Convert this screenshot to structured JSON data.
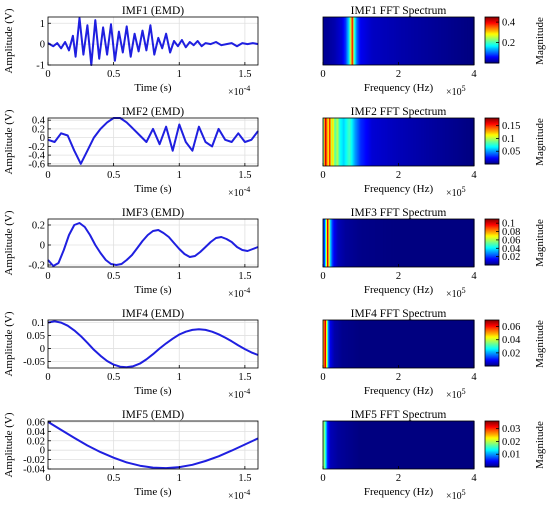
{
  "chart_data": [
    {
      "type": "line",
      "title": "IMF1 (EMD)",
      "xlabel": "Time (s)",
      "ylabel": "Amplitude (V)",
      "x_multiplier": "×10",
      "x_exponent": "-4",
      "xlim": [
        0,
        1.6
      ],
      "ylim": [
        -1,
        1.3
      ],
      "xticks": [
        "0",
        "0.5",
        "1",
        "1.5"
      ],
      "yticks": [
        -1,
        0,
        1
      ],
      "grid": true,
      "color": "#1f1fe0",
      "series": [
        {
          "x": [
            0,
            0.04,
            0.07,
            0.1,
            0.13,
            0.16,
            0.19,
            0.21,
            0.24,
            0.27,
            0.3,
            0.33,
            0.36,
            0.39,
            0.42,
            0.45,
            0.48,
            0.51,
            0.54,
            0.57,
            0.6,
            0.63,
            0.66,
            0.69,
            0.72,
            0.75,
            0.78,
            0.81,
            0.84,
            0.87,
            0.9,
            0.93,
            0.96,
            0.99,
            1.02,
            1.05,
            1.08,
            1.11,
            1.14,
            1.17,
            1.2,
            1.24,
            1.28,
            1.32,
            1.36,
            1.4,
            1.44,
            1.48,
            1.52,
            1.56,
            1.6
          ],
          "y": [
            0.05,
            -0.1,
            0.05,
            -0.2,
            0.1,
            -0.3,
            0.4,
            -0.6,
            1.25,
            -0.5,
            0.9,
            -1.0,
            1.15,
            -0.7,
            0.8,
            -0.5,
            0.95,
            -0.8,
            0.6,
            -0.4,
            0.85,
            -0.6,
            0.5,
            -0.35,
            0.65,
            -0.3,
            0.9,
            -0.5,
            0.3,
            -0.2,
            0.5,
            -0.4,
            0.15,
            -0.1,
            0.2,
            -0.15,
            0.1,
            -0.05,
            0.15,
            -0.1,
            0.05,
            0.0,
            0.1,
            -0.05,
            0.0,
            0.05,
            -0.1,
            0.05,
            0.0,
            0.05,
            0.0
          ]
        }
      ]
    },
    {
      "type": "heatmap",
      "title": "IMF1 FFT Spectrum",
      "xlabel": "Frequency (Hz)",
      "x_multiplier": "×10",
      "x_exponent": "5",
      "xlim": [
        0,
        4
      ],
      "xticks": [
        "0",
        "2",
        "4"
      ],
      "colorbar_label": "Magnitude",
      "clim": [
        0,
        0.45
      ],
      "colorbar_ticks": [
        "0.2",
        "0.4"
      ],
      "colorbar_tick_values": [
        0.2,
        0.4
      ],
      "frequency": [
        0.1,
        0.3,
        0.5,
        0.6,
        0.68,
        0.74,
        0.78,
        0.82,
        0.9,
        1.0,
        1.3,
        2.0,
        3.0,
        4.0
      ],
      "magnitude": [
        0.01,
        0.02,
        0.04,
        0.08,
        0.15,
        0.26,
        0.42,
        0.2,
        0.1,
        0.05,
        0.03,
        0.02,
        0.01,
        0.0
      ]
    },
    {
      "type": "line",
      "title": "IMF2 (EMD)",
      "xlabel": "Time (s)",
      "ylabel": "Amplitude (V)",
      "x_multiplier": "×10",
      "x_exponent": "-4",
      "xlim": [
        0,
        1.6
      ],
      "ylim": [
        -0.65,
        0.45
      ],
      "xticks": [
        "0",
        "0.5",
        "1",
        "1.5"
      ],
      "yticks": [
        -0.6,
        -0.4,
        -0.2,
        0,
        0.2,
        0.4
      ],
      "grid": true,
      "color": "#1f1fe0",
      "series": [
        {
          "x": [
            0,
            0.05,
            0.1,
            0.15,
            0.2,
            0.25,
            0.3,
            0.35,
            0.4,
            0.45,
            0.5,
            0.55,
            0.6,
            0.65,
            0.7,
            0.75,
            0.8,
            0.85,
            0.9,
            0.95,
            1.0,
            1.05,
            1.1,
            1.15,
            1.2,
            1.25,
            1.3,
            1.35,
            1.4,
            1.45,
            1.5,
            1.55,
            1.6
          ],
          "y": [
            -0.05,
            -0.1,
            0.1,
            0.05,
            -0.3,
            -0.6,
            -0.3,
            0.0,
            0.2,
            0.35,
            0.45,
            0.45,
            0.35,
            0.2,
            0.05,
            -0.1,
            0.2,
            -0.15,
            0.25,
            -0.3,
            0.3,
            -0.1,
            -0.3,
            0.25,
            -0.1,
            -0.2,
            0.2,
            -0.05,
            -0.1,
            0.1,
            -0.1,
            -0.05,
            0.15
          ]
        }
      ]
    },
    {
      "type": "heatmap",
      "title": "IMF2 FFT Spectrum",
      "xlabel": "Frequency (Hz)",
      "x_multiplier": "×10",
      "x_exponent": "5",
      "xlim": [
        0,
        4
      ],
      "xticks": [
        "0",
        "2",
        "4"
      ],
      "colorbar_label": "Magnitude",
      "clim": [
        0,
        0.18
      ],
      "colorbar_ticks": [
        "0.05",
        "0.1",
        "0.15"
      ],
      "colorbar_tick_values": [
        0.05,
        0.1,
        0.15
      ],
      "frequency": [
        0.02,
        0.06,
        0.1,
        0.14,
        0.18,
        0.22,
        0.26,
        0.32,
        0.38,
        0.45,
        0.55,
        0.7,
        0.85,
        1.0,
        1.3,
        2.0,
        3.0,
        4.0
      ],
      "magnitude": [
        0.09,
        0.17,
        0.14,
        0.11,
        0.16,
        0.1,
        0.12,
        0.08,
        0.1,
        0.07,
        0.06,
        0.08,
        0.05,
        0.03,
        0.015,
        0.01,
        0.005,
        0.0
      ]
    },
    {
      "type": "line",
      "title": "IMF3 (EMD)",
      "xlabel": "Time (s)",
      "ylabel": "Amplitude (V)",
      "x_multiplier": "×10",
      "x_exponent": "-4",
      "xlim": [
        0,
        1.6
      ],
      "ylim": [
        -0.22,
        0.26
      ],
      "xticks": [
        "0",
        "0.5",
        "1",
        "1.5"
      ],
      "yticks": [
        -0.2,
        0,
        0.2
      ],
      "grid": true,
      "color": "#1f1fe0",
      "series": [
        {
          "x": [
            0,
            0.04,
            0.08,
            0.12,
            0.16,
            0.2,
            0.24,
            0.28,
            0.32,
            0.36,
            0.4,
            0.44,
            0.48,
            0.52,
            0.56,
            0.6,
            0.64,
            0.68,
            0.72,
            0.76,
            0.8,
            0.84,
            0.88,
            0.92,
            0.96,
            1.0,
            1.04,
            1.08,
            1.12,
            1.16,
            1.2,
            1.24,
            1.28,
            1.32,
            1.36,
            1.4,
            1.44,
            1.48,
            1.52,
            1.56,
            1.6
          ],
          "y": [
            -0.15,
            -0.21,
            -0.18,
            -0.05,
            0.1,
            0.2,
            0.22,
            0.18,
            0.1,
            0.0,
            -0.08,
            -0.15,
            -0.19,
            -0.2,
            -0.19,
            -0.15,
            -0.1,
            -0.03,
            0.04,
            0.1,
            0.14,
            0.15,
            0.12,
            0.08,
            0.02,
            -0.04,
            -0.09,
            -0.12,
            -0.11,
            -0.07,
            -0.02,
            0.03,
            0.07,
            0.08,
            0.06,
            0.03,
            -0.02,
            -0.05,
            -0.06,
            -0.04,
            -0.02
          ]
        }
      ]
    },
    {
      "type": "heatmap",
      "title": "IMF3 FFT Spectrum",
      "xlabel": "Frequency (Hz)",
      "x_multiplier": "×10",
      "x_exponent": "5",
      "xlim": [
        0,
        4
      ],
      "xticks": [
        "0",
        "2",
        "4"
      ],
      "colorbar_label": "Magnitude",
      "clim": [
        0,
        0.11
      ],
      "colorbar_ticks": [
        "0.02",
        "0.04",
        "0.06",
        "0.08",
        "0.1"
      ],
      "colorbar_tick_values": [
        0.02,
        0.04,
        0.06,
        0.08,
        0.1
      ],
      "frequency": [
        0.04,
        0.08,
        0.12,
        0.16,
        0.2,
        0.25,
        0.3,
        0.4,
        0.6,
        1.0,
        2.0,
        4.0
      ],
      "magnitude": [
        0.02,
        0.05,
        0.1,
        0.07,
        0.035,
        0.02,
        0.012,
        0.006,
        0.003,
        0.001,
        0.0,
        0.0
      ]
    },
    {
      "type": "line",
      "title": "IMF4 (EMD)",
      "xlabel": "Time (s)",
      "ylabel": "Amplitude (V)",
      "x_multiplier": "×10",
      "x_exponent": "-4",
      "xlim": [
        0,
        1.6
      ],
      "ylim": [
        -0.075,
        0.11
      ],
      "xticks": [
        "0",
        "0.5",
        "1",
        "1.5"
      ],
      "yticks": [
        -0.05,
        0,
        0.05,
        0.1
      ],
      "grid": true,
      "color": "#1f1fe0",
      "series": [
        {
          "x": [
            0,
            0.05,
            0.1,
            0.15,
            0.2,
            0.25,
            0.3,
            0.35,
            0.4,
            0.45,
            0.5,
            0.55,
            0.6,
            0.65,
            0.7,
            0.75,
            0.8,
            0.85,
            0.9,
            0.95,
            1.0,
            1.05,
            1.1,
            1.15,
            1.2,
            1.25,
            1.3,
            1.35,
            1.4,
            1.45,
            1.5,
            1.55,
            1.6
          ],
          "y": [
            0.1,
            0.105,
            0.1,
            0.088,
            0.07,
            0.048,
            0.022,
            -0.005,
            -0.028,
            -0.048,
            -0.062,
            -0.07,
            -0.072,
            -0.068,
            -0.058,
            -0.042,
            -0.022,
            0.0,
            0.02,
            0.038,
            0.054,
            0.065,
            0.072,
            0.074,
            0.072,
            0.065,
            0.055,
            0.042,
            0.028,
            0.012,
            -0.002,
            -0.015,
            -0.025
          ]
        }
      ]
    },
    {
      "type": "heatmap",
      "title": "IMF4 FFT Spectrum",
      "xlabel": "Frequency (Hz)",
      "x_multiplier": "×10",
      "x_exponent": "5",
      "xlim": [
        0,
        4
      ],
      "xticks": [
        "0",
        "2",
        "4"
      ],
      "colorbar_label": "Magnitude",
      "clim": [
        0,
        0.07
      ],
      "colorbar_ticks": [
        "0.02",
        "0.04",
        "0.06"
      ],
      "colorbar_tick_values": [
        0.02,
        0.04,
        0.06
      ],
      "frequency": [
        0.03,
        0.06,
        0.09,
        0.12,
        0.15,
        0.2,
        0.3,
        0.5,
        1.0,
        2.0,
        4.0
      ],
      "magnitude": [
        0.05,
        0.068,
        0.045,
        0.03,
        0.015,
        0.007,
        0.003,
        0.001,
        0.0,
        0.0,
        0.0
      ]
    },
    {
      "type": "line",
      "title": "IMF5 (EMD)",
      "xlabel": "Time (s)",
      "ylabel": "Amplitude (V)",
      "x_multiplier": "×10",
      "x_exponent": "-4",
      "xlim": [
        0,
        1.6
      ],
      "ylim": [
        -0.04,
        0.062
      ],
      "xticks": [
        "0",
        "0.5",
        "1",
        "1.5"
      ],
      "yticks": [
        -0.04,
        -0.02,
        0,
        0.02,
        0.04,
        0.06
      ],
      "grid": true,
      "color": "#1f1fe0",
      "series": [
        {
          "x": [
            0,
            0.1,
            0.2,
            0.3,
            0.4,
            0.5,
            0.6,
            0.7,
            0.8,
            0.9,
            1.0,
            1.1,
            1.2,
            1.3,
            1.4,
            1.5,
            1.6
          ],
          "y": [
            0.06,
            0.043,
            0.026,
            0.01,
            -0.004,
            -0.016,
            -0.026,
            -0.033,
            -0.037,
            -0.038,
            -0.036,
            -0.031,
            -0.023,
            -0.013,
            -0.001,
            0.012,
            0.025
          ]
        }
      ]
    },
    {
      "type": "heatmap",
      "title": "IMF5 FFT Spectrum",
      "xlabel": "Frequency (Hz)",
      "x_multiplier": "×10",
      "x_exponent": "5",
      "xlim": [
        0,
        4
      ],
      "xticks": [
        "0",
        "2",
        "4"
      ],
      "colorbar_label": "Magnitude",
      "clim": [
        0,
        0.036
      ],
      "colorbar_ticks": [
        "0.01",
        "0.02",
        "0.03"
      ],
      "colorbar_tick_values": [
        0.01,
        0.02,
        0.03
      ],
      "frequency": [
        0.04,
        0.08,
        0.12,
        0.2,
        0.4,
        1.0,
        2.0,
        4.0
      ],
      "magnitude": [
        0.018,
        0.012,
        0.006,
        0.002,
        0.001,
        0.0,
        0.0,
        0.0
      ]
    }
  ]
}
